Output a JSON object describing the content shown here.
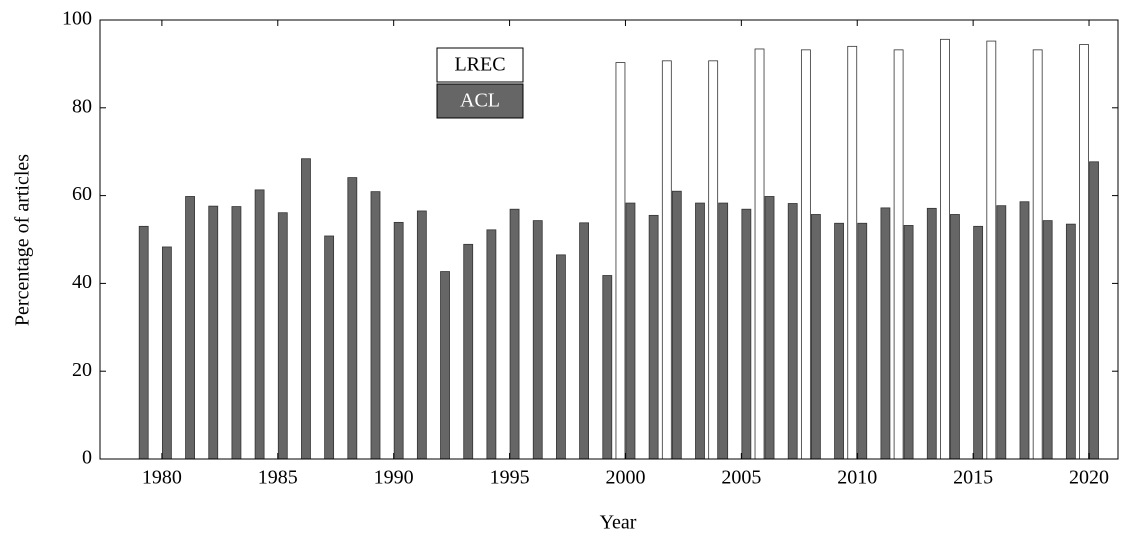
{
  "chart_data": {
    "type": "bar",
    "x_label": "Year",
    "y_label": "Percentage of articles",
    "x": [
      1979,
      1980,
      1981,
      1982,
      1983,
      1984,
      1985,
      1986,
      1987,
      1988,
      1989,
      1990,
      1991,
      1992,
      1993,
      1994,
      1995,
      1996,
      1997,
      1998,
      1999,
      2000,
      2001,
      2002,
      2003,
      2004,
      2005,
      2006,
      2007,
      2008,
      2009,
      2010,
      2011,
      2012,
      2013,
      2014,
      2015,
      2016,
      2017,
      2018,
      2019,
      2020
    ],
    "series": [
      {
        "name": "LREC",
        "color": "#ffffff",
        "values": [
          null,
          null,
          null,
          null,
          null,
          null,
          null,
          null,
          null,
          null,
          null,
          null,
          null,
          null,
          null,
          null,
          null,
          null,
          null,
          null,
          null,
          90.3,
          null,
          90.7,
          null,
          90.7,
          null,
          93.4,
          null,
          93.2,
          null,
          94.0,
          null,
          93.2,
          null,
          95.6,
          null,
          95.2,
          null,
          93.2,
          null,
          94.4
        ]
      },
      {
        "name": "ACL",
        "color": "#666666",
        "values": [
          53.0,
          48.3,
          59.8,
          57.6,
          57.5,
          61.3,
          56.1,
          68.4,
          50.8,
          64.1,
          60.9,
          53.9,
          56.5,
          42.7,
          48.9,
          52.2,
          56.9,
          54.3,
          46.5,
          53.8,
          41.8,
          58.3,
          55.5,
          61.0,
          58.3,
          58.3,
          56.9,
          59.8,
          58.2,
          55.7,
          53.7,
          53.7,
          57.2,
          53.2,
          57.1,
          55.7,
          53.0,
          57.7,
          58.6,
          54.3,
          53.5,
          67.7
        ]
      }
    ],
    "xlim": [
      1977.33,
      2021.25
    ],
    "xticks": [
      1980,
      1985,
      1990,
      1995,
      2000,
      2005,
      2010,
      2015,
      2020
    ],
    "ylim": [
      0,
      100
    ],
    "yticks": [
      0,
      20,
      40,
      60,
      80,
      100
    ]
  }
}
